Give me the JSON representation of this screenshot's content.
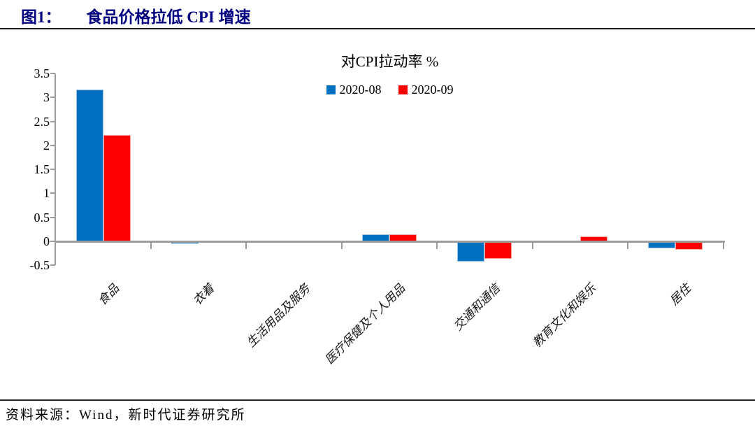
{
  "header": {
    "figure_label": "图1：",
    "title": "食品价格拉低 CPI 增速"
  },
  "chart_data": {
    "type": "bar",
    "title": "对CPI拉动率 %",
    "categories": [
      "食品",
      "衣着",
      "生活用品及服务",
      "医疗保健及个人用品",
      "交通和通信",
      "教育文化和娱乐",
      "居住"
    ],
    "series": [
      {
        "name": "2020-08",
        "color": "#0070C0",
        "border": "#9cc3e8",
        "values": [
          3.16,
          -0.04,
          0,
          0.14,
          -0.42,
          0,
          -0.15
        ]
      },
      {
        "name": "2020-09",
        "color": "#FF0000",
        "border": "#ffa0a0",
        "values": [
          2.22,
          -0.03,
          0,
          0.15,
          -0.37,
          0.1,
          -0.18
        ]
      }
    ],
    "ylabel": "",
    "xlabel": "",
    "ylim": [
      -0.5,
      3.5
    ],
    "ytick_step": 0.5,
    "grid": false,
    "legend_position": "top-center",
    "axis_color": "#9c9c9c"
  },
  "source": {
    "label": "资料来源：Wind，新时代证券研究所"
  },
  "colors": {
    "title_navy": "#000080",
    "bar_blue": "#0070C0",
    "bar_red": "#FF0000",
    "axis_gray": "#9c9c9c"
  }
}
